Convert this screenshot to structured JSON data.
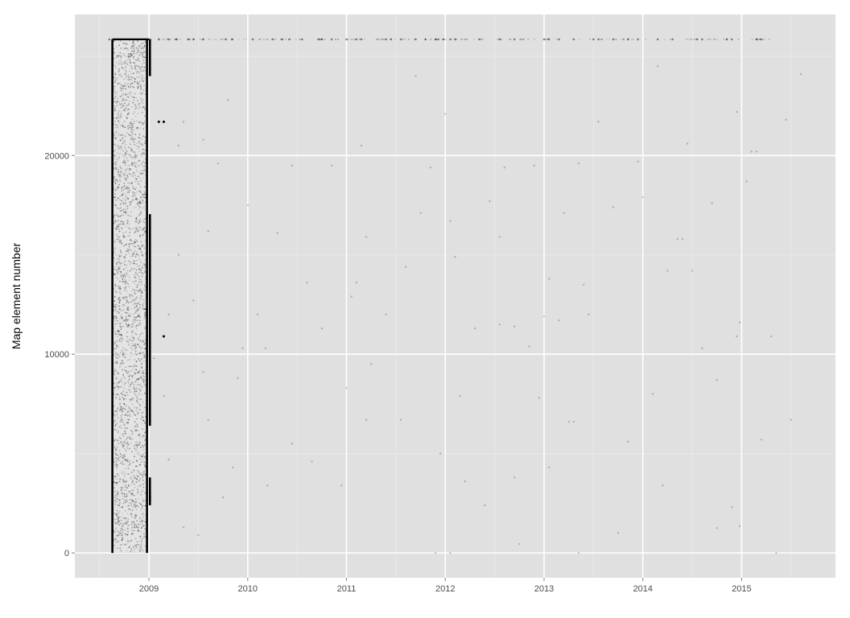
{
  "chart_data": {
    "type": "scatter",
    "title": "",
    "xlabel": "",
    "ylabel": "Map element number",
    "x_ticks": [
      "2009",
      "2010",
      "2011",
      "2012",
      "2013",
      "2014",
      "2015"
    ],
    "y_ticks": [
      "0",
      "10000",
      "20000"
    ],
    "xlim": [
      2008.25,
      2015.95
    ],
    "ylim": [
      -1250,
      27100
    ],
    "grid": true,
    "legend": "none",
    "colors": {
      "panel": "#e0e0e0",
      "grid_major": "#ffffff",
      "grid_minor": "#ebebeb",
      "point": "#000000"
    },
    "series": [
      {
        "dense_block": {
          "x_from": 2008.63,
          "x_to": 2008.98,
          "y_from": 0,
          "y_to": 25850
        },
        "vertical_runs": [
          {
            "x": 2008.63,
            "y_from": 0,
            "y_to": 25850
          },
          {
            "x": 2008.98,
            "y_from": 0,
            "y_to": 25850
          },
          {
            "x": 2009.01,
            "y_from": 6400,
            "y_to": 17050
          },
          {
            "x": 2009.01,
            "y_from": 2600,
            "y_to": 3800
          },
          {
            "x": 2009.01,
            "y_from": 2400,
            "y_to": 2900
          },
          {
            "x": 2009.01,
            "y_from": 24000,
            "y_to": 25850
          }
        ],
        "top_band_y": 25850,
        "top_band_x": [
          2008.6,
          2009.0,
          2009.1,
          2009.2,
          2009.28,
          2009.4,
          2009.45,
          2009.55,
          2009.78,
          2009.84,
          2010.05,
          2010.25,
          2010.35,
          2010.42,
          2010.55,
          2010.72,
          2010.75,
          2010.85,
          2011.0,
          2011.1,
          2011.15,
          2011.4,
          2011.45,
          2011.55,
          2011.7,
          2011.8,
          2011.9,
          2011.93,
          2011.98,
          2012.05,
          2012.1,
          2012.35,
          2012.55,
          2012.7,
          2013.0,
          2013.05,
          2013.15,
          2013.3,
          2013.5,
          2013.55,
          2013.7,
          2013.85,
          2013.95,
          2014.15,
          2014.3,
          2014.55,
          2014.6,
          2014.85,
          2014.9,
          2015.15,
          2015.2
        ],
        "scatter_points": [
          [
            2009.1,
            21700
          ],
          [
            2009.15,
            21700
          ],
          [
            2009.15,
            10900
          ],
          [
            2008.68,
            1500
          ],
          [
            2009.35,
            21700
          ],
          [
            2009.55,
            20800
          ],
          [
            2009.3,
            20500
          ],
          [
            2009.8,
            22800
          ],
          [
            2010.18,
            10300
          ],
          [
            2010.85,
            19500
          ],
          [
            2011.15,
            20500
          ],
          [
            2011.0,
            8300
          ],
          [
            2011.1,
            13600
          ],
          [
            2011.7,
            24000
          ],
          [
            2012.0,
            22100
          ],
          [
            2012.05,
            16700
          ],
          [
            2012.1,
            14900
          ],
          [
            2012.3,
            11300
          ],
          [
            2012.55,
            15900
          ],
          [
            2012.55,
            11500
          ],
          [
            2012.7,
            11400
          ],
          [
            2012.85,
            10400
          ],
          [
            2013.0,
            11900
          ],
          [
            2013.15,
            11700
          ],
          [
            2013.25,
            6600
          ],
          [
            2013.3,
            6600
          ],
          [
            2013.4,
            13500
          ],
          [
            2013.2,
            17100
          ],
          [
            2013.7,
            17400
          ],
          [
            2014.0,
            17900
          ],
          [
            2014.15,
            24500
          ],
          [
            2014.35,
            15800
          ],
          [
            2014.4,
            15800
          ],
          [
            2014.5,
            14200
          ],
          [
            2014.6,
            10300
          ],
          [
            2014.75,
            8700
          ],
          [
            2014.95,
            10900
          ],
          [
            2014.98,
            11600
          ],
          [
            2015.1,
            20200
          ],
          [
            2015.15,
            20200
          ],
          [
            2015.3,
            10900
          ],
          [
            2015.45,
            21800
          ],
          [
            2015.6,
            24100
          ],
          [
            2015.5,
            6700
          ],
          [
            2015.2,
            5700
          ],
          [
            2014.98,
            1350
          ],
          [
            2014.75,
            1250
          ],
          [
            2014.2,
            3400
          ],
          [
            2013.85,
            5600
          ],
          [
            2013.75,
            1000
          ],
          [
            2013.35,
            0
          ],
          [
            2013.05,
            4300
          ],
          [
            2012.75,
            450
          ],
          [
            2012.4,
            2400
          ],
          [
            2012.2,
            3600
          ],
          [
            2012.15,
            7900
          ],
          [
            2011.95,
            5000
          ],
          [
            2011.9,
            0
          ],
          [
            2012.05,
            0
          ],
          [
            2011.55,
            6700
          ],
          [
            2011.2,
            6700
          ],
          [
            2010.95,
            3400
          ],
          [
            2010.65,
            4600
          ],
          [
            2010.45,
            5500
          ],
          [
            2010.2,
            3400
          ],
          [
            2009.9,
            8800
          ],
          [
            2009.85,
            4300
          ],
          [
            2009.6,
            6700
          ],
          [
            2009.75,
            2800
          ],
          [
            2009.5,
            900
          ],
          [
            2009.35,
            1300
          ],
          [
            2009.2,
            4700
          ],
          [
            2009.15,
            7900
          ],
          [
            2009.3,
            15000
          ],
          [
            2009.6,
            16200
          ],
          [
            2009.7,
            19600
          ],
          [
            2010.0,
            17500
          ],
          [
            2010.3,
            16100
          ],
          [
            2010.45,
            19500
          ],
          [
            2010.1,
            12000
          ],
          [
            2010.75,
            11300
          ],
          [
            2011.05,
            12900
          ],
          [
            2011.2,
            15900
          ],
          [
            2011.4,
            12000
          ],
          [
            2011.6,
            14400
          ],
          [
            2011.85,
            19400
          ],
          [
            2011.75,
            17100
          ],
          [
            2012.45,
            17700
          ],
          [
            2012.6,
            19400
          ],
          [
            2012.9,
            19500
          ],
          [
            2013.35,
            19600
          ],
          [
            2013.55,
            21700
          ],
          [
            2013.95,
            19700
          ],
          [
            2014.25,
            14200
          ],
          [
            2014.45,
            20600
          ],
          [
            2014.7,
            17600
          ],
          [
            2014.95,
            22200
          ],
          [
            2015.05,
            18700
          ],
          [
            2013.45,
            12000
          ],
          [
            2013.05,
            13800
          ],
          [
            2012.95,
            7800
          ],
          [
            2012.7,
            3800
          ],
          [
            2014.1,
            8000
          ],
          [
            2014.9,
            2300
          ],
          [
            2015.35,
            0
          ],
          [
            2009.05,
            9800
          ],
          [
            2009.2,
            12000
          ],
          [
            2009.45,
            12700
          ],
          [
            2009.55,
            9100
          ],
          [
            2009.95,
            10300
          ],
          [
            2010.6,
            13600
          ],
          [
            2011.25,
            9500
          ]
        ]
      }
    ]
  }
}
